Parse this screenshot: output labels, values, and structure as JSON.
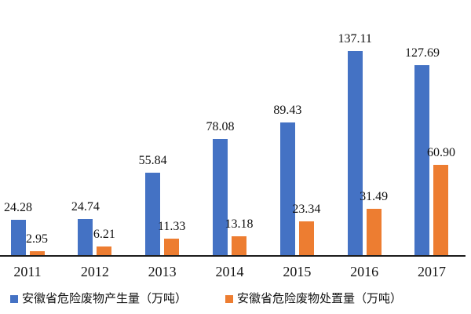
{
  "chart_data": {
    "type": "bar",
    "title": "",
    "xlabel": "",
    "ylabel": "",
    "ylim": [
      0,
      150
    ],
    "grid": false,
    "legend_position": "bottom",
    "data_labels": true,
    "categories": [
      "2011",
      "2012",
      "2013",
      "2014",
      "2015",
      "2016",
      "2017"
    ],
    "series": [
      {
        "name": "安徽省危险废物产生量（万吨）",
        "color": "#4472C4",
        "values": [
          24.28,
          24.74,
          55.84,
          78.08,
          89.43,
          137.11,
          127.69
        ],
        "labels": [
          "24.28",
          "24.74",
          "55.84",
          "78.08",
          "89.43",
          "137.11",
          "127.69"
        ]
      },
      {
        "name": "安徽省危险废物处置量（万吨）",
        "color": "#ED7D31",
        "values": [
          2.95,
          6.21,
          11.33,
          13.18,
          23.34,
          31.49,
          60.9
        ],
        "labels": [
          "2.95",
          "6.21",
          "11.33",
          "13.18",
          "23.34",
          "31.49",
          "60.90"
        ]
      }
    ]
  },
  "legend": {
    "items": [
      {
        "label": "安徽省危险废物产生量（万吨）",
        "color": "#4472C4"
      },
      {
        "label": "安徽省危险废物处置量（万吨）",
        "color": "#ED7D31"
      }
    ]
  }
}
